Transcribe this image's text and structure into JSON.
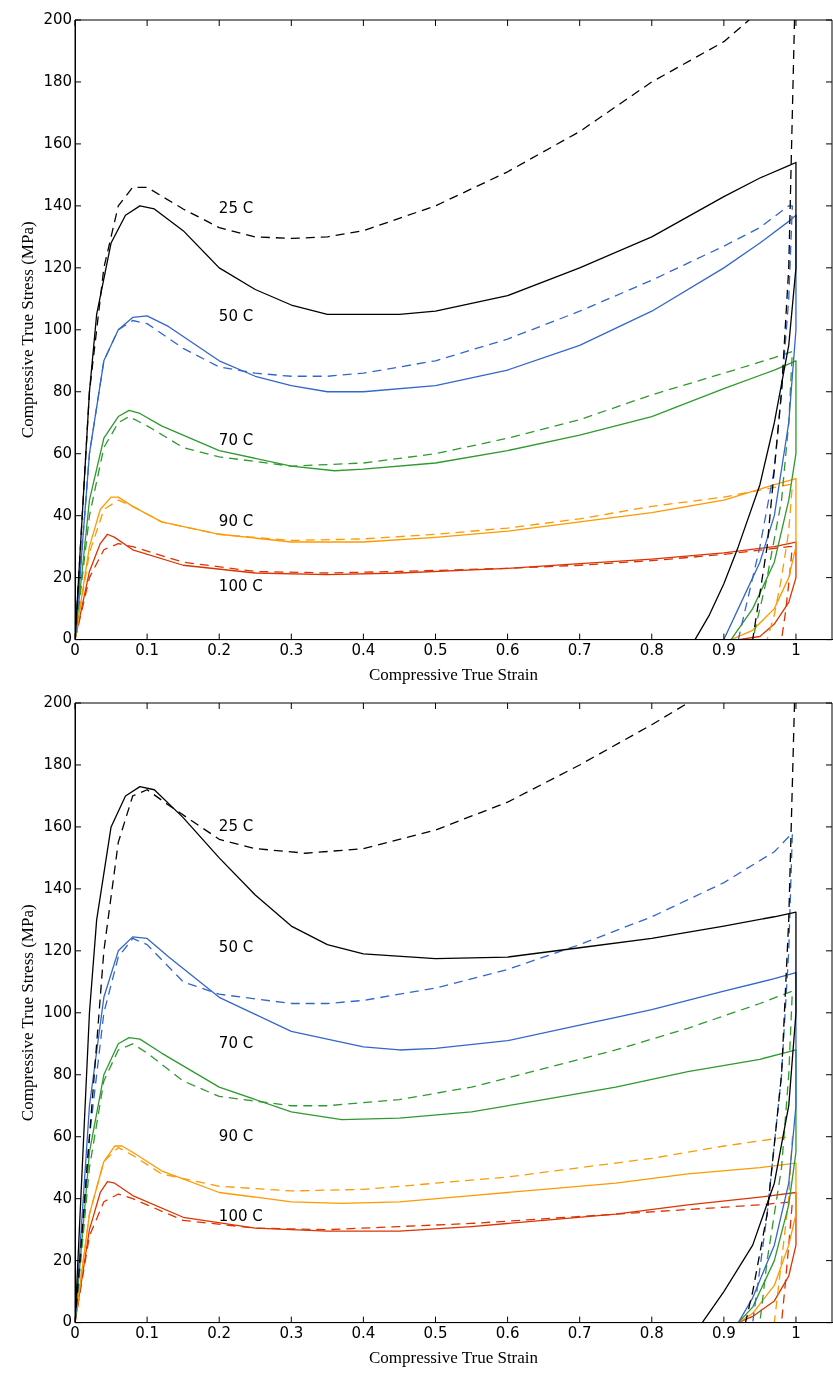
{
  "chart_data": [
    {
      "type": "line",
      "xlabel": "Compressive True Strain",
      "ylabel": "Compressive True Stress (MPa)",
      "xlim": [
        0,
        1.05
      ],
      "ylim": [
        0,
        200
      ],
      "xticks": [
        0,
        0.1,
        0.2,
        0.3,
        0.4,
        0.5,
        0.6,
        0.7,
        0.8,
        0.9,
        1
      ],
      "yticks": [
        0,
        20,
        40,
        60,
        80,
        100,
        120,
        140,
        160,
        180,
        200
      ],
      "grid": false,
      "legend": false,
      "annotations": [
        "25 C",
        "50 C",
        "70 C",
        "90 C",
        "100 C"
      ],
      "series": [
        {
          "color": "#000000",
          "line_style": "solid",
          "x": [
            0,
            0.01,
            0.02,
            0.03,
            0.05,
            0.07,
            0.09,
            0.11,
            0.15,
            0.2,
            0.25,
            0.3,
            0.35,
            0.4,
            0.45,
            0.5,
            0.6,
            0.7,
            0.8,
            0.9,
            0.95,
            0.99,
            1.0,
            1.0,
            0.99,
            0.97,
            0.95,
            0.92,
            0.9,
            0.88,
            0.86
          ],
          "values": [
            0,
            40,
            80,
            105,
            128,
            137,
            140,
            139,
            132,
            120,
            113,
            108,
            105,
            105,
            105,
            106,
            111,
            120,
            130,
            143,
            149,
            153,
            154,
            120,
            95,
            70,
            50,
            30,
            18,
            8,
            0
          ]
        },
        {
          "color": "#000000",
          "line_style": "dashed",
          "x": [
            0,
            0.01,
            0.02,
            0.04,
            0.06,
            0.08,
            0.1,
            0.15,
            0.2,
            0.25,
            0.3,
            0.35,
            0.4,
            0.5,
            0.6,
            0.7,
            0.8,
            0.9,
            0.935,
            0.97,
            0.998,
            0.99,
            0.98,
            0.96,
            0.94
          ],
          "values": [
            0,
            40,
            80,
            120,
            140,
            146,
            146,
            139,
            133,
            130,
            129.5,
            130,
            132,
            140,
            151,
            164,
            180,
            193,
            200,
            null,
            200,
            120,
            80,
            30,
            0
          ]
        },
        {
          "color": "#3366cc",
          "line_style": "solid",
          "x": [
            0,
            0.01,
            0.02,
            0.04,
            0.06,
            0.08,
            0.1,
            0.13,
            0.2,
            0.25,
            0.3,
            0.35,
            0.4,
            0.5,
            0.6,
            0.7,
            0.8,
            0.9,
            0.95,
            0.99,
            1.0,
            1.0,
            0.99,
            0.97,
            0.95,
            0.92,
            0.9
          ],
          "values": [
            0,
            30,
            60,
            90,
            100,
            104,
            104.5,
            101,
            90,
            85,
            82,
            80,
            80,
            82,
            87,
            95,
            106,
            120,
            128,
            135,
            137,
            100,
            70,
            40,
            25,
            10,
            0
          ]
        },
        {
          "color": "#3366cc",
          "line_style": "dashed",
          "x": [
            0,
            0.02,
            0.04,
            0.06,
            0.08,
            0.1,
            0.15,
            0.2,
            0.25,
            0.3,
            0.35,
            0.4,
            0.5,
            0.6,
            0.7,
            0.8,
            0.9,
            0.95,
            0.99,
            0.995,
            0.99,
            0.98,
            0.97,
            0.95,
            0.93,
            0.92
          ],
          "values": [
            0,
            60,
            90,
            100,
            103,
            102,
            94,
            88,
            86,
            85,
            85,
            86,
            90,
            97,
            106,
            116,
            127,
            133,
            140,
            140,
            110,
            80,
            55,
            30,
            10,
            0
          ]
        },
        {
          "color": "#2e9a2e",
          "line_style": "solid",
          "x": [
            0,
            0.02,
            0.04,
            0.06,
            0.075,
            0.09,
            0.12,
            0.2,
            0.3,
            0.36,
            0.4,
            0.5,
            0.6,
            0.7,
            0.8,
            0.9,
            0.97,
            1.0,
            1.0,
            0.99,
            0.97,
            0.94,
            0.91
          ],
          "values": [
            0,
            45,
            65,
            72,
            74,
            73,
            69,
            61,
            56,
            54.5,
            55,
            57,
            61,
            66,
            72,
            81,
            87,
            90,
            60,
            45,
            25,
            10,
            0
          ]
        },
        {
          "color": "#2e9a2e",
          "line_style": "dashed",
          "x": [
            0,
            0.02,
            0.04,
            0.06,
            0.075,
            0.1,
            0.15,
            0.2,
            0.3,
            0.4,
            0.5,
            0.6,
            0.7,
            0.8,
            0.9,
            0.97,
            0.995,
            0.99,
            0.98,
            0.96,
            0.94
          ],
          "values": [
            0,
            40,
            62,
            70,
            72,
            69,
            62,
            59,
            56,
            57,
            60,
            65,
            71,
            79,
            86,
            91,
            93,
            70,
            45,
            20,
            0
          ]
        },
        {
          "color": "#ff9900",
          "line_style": "solid",
          "x": [
            0,
            0.02,
            0.035,
            0.05,
            0.06,
            0.08,
            0.12,
            0.2,
            0.3,
            0.4,
            0.5,
            0.6,
            0.7,
            0.8,
            0.9,
            0.97,
            1.0,
            1.0,
            0.99,
            0.97,
            0.94,
            0.91
          ],
          "values": [
            0,
            30,
            42,
            46,
            46,
            43,
            38,
            34,
            31.5,
            31.5,
            33,
            35,
            38,
            41,
            45,
            50,
            52,
            30,
            20,
            10,
            3,
            0
          ]
        },
        {
          "color": "#ff9900",
          "line_style": "dashed",
          "x": [
            0,
            0.02,
            0.04,
            0.06,
            0.08,
            0.12,
            0.2,
            0.3,
            0.4,
            0.5,
            0.6,
            0.7,
            0.8,
            0.9,
            0.99,
            0.995,
            0.99,
            0.98,
            0.97,
            0.96
          ],
          "values": [
            0,
            28,
            42,
            45,
            43,
            38,
            34,
            32,
            32.5,
            34,
            36,
            39,
            43,
            46,
            50,
            50,
            35,
            20,
            8,
            0
          ]
        },
        {
          "color": "#dd3300",
          "line_style": "solid",
          "x": [
            0,
            0.02,
            0.035,
            0.045,
            0.055,
            0.08,
            0.15,
            0.25,
            0.35,
            0.45,
            0.6,
            0.7,
            0.8,
            0.9,
            0.97,
            1.0,
            1.0,
            0.99,
            0.97,
            0.95,
            0.92
          ],
          "values": [
            0,
            22,
            31,
            34,
            33,
            29,
            24,
            21.5,
            21,
            21.5,
            23,
            24.5,
            26,
            28,
            30,
            31.5,
            20,
            12,
            5,
            1,
            0
          ]
        },
        {
          "color": "#dd3300",
          "line_style": "dashed",
          "x": [
            0,
            0.02,
            0.04,
            0.06,
            0.08,
            0.15,
            0.25,
            0.35,
            0.45,
            0.6,
            0.7,
            0.8,
            0.9,
            0.99,
            0.995,
            0.99,
            0.985,
            0.98
          ],
          "values": [
            0,
            20,
            29,
            31,
            30,
            25,
            22,
            21.5,
            22,
            23,
            24,
            25.5,
            27.5,
            30,
            30,
            18,
            8,
            0
          ]
        }
      ]
    },
    {
      "type": "line",
      "xlabel": "Compressive True Strain",
      "ylabel": "Compressive True Stress (MPa)",
      "xlim": [
        0,
        1.05
      ],
      "ylim": [
        0,
        200
      ],
      "xticks": [
        0,
        0.1,
        0.2,
        0.3,
        0.4,
        0.5,
        0.6,
        0.7,
        0.8,
        0.9,
        1
      ],
      "yticks": [
        0,
        20,
        40,
        60,
        80,
        100,
        120,
        140,
        160,
        180,
        200
      ],
      "grid": false,
      "legend": false,
      "annotations": [
        "25 C",
        "50 C",
        "70 C",
        "90 C",
        "100 C"
      ],
      "series": [
        {
          "color": "#000000",
          "line_style": "solid",
          "x": [
            0,
            0.01,
            0.02,
            0.03,
            0.05,
            0.07,
            0.09,
            0.11,
            0.15,
            0.2,
            0.25,
            0.3,
            0.35,
            0.4,
            0.5,
            0.6,
            0.7,
            0.8,
            0.9,
            0.97,
            1.0,
            1.0,
            0.99,
            0.97,
            0.94,
            0.9,
            0.87
          ],
          "values": [
            0,
            50,
            100,
            130,
            160,
            170,
            173,
            172,
            163,
            150,
            138,
            128,
            122,
            119,
            117.5,
            118,
            121,
            124,
            128,
            131,
            132.5,
            100,
            70,
            45,
            25,
            10,
            0
          ]
        },
        {
          "color": "#000000",
          "line_style": "dashed",
          "x": [
            0,
            0.02,
            0.04,
            0.06,
            0.08,
            0.1,
            0.13,
            0.2,
            0.25,
            0.32,
            0.4,
            0.5,
            0.6,
            0.7,
            0.8,
            0.85,
            0.9,
            0.998,
            0.99,
            0.98,
            0.96,
            0.94,
            0.93
          ],
          "values": [
            0,
            60,
            120,
            155,
            170,
            172,
            167,
            156,
            153,
            151.5,
            153,
            159,
            168,
            180,
            193,
            200,
            null,
            200,
            130,
            80,
            35,
            10,
            0
          ]
        },
        {
          "color": "#3366cc",
          "line_style": "solid",
          "x": [
            0,
            0.02,
            0.04,
            0.06,
            0.08,
            0.1,
            0.13,
            0.2,
            0.3,
            0.4,
            0.45,
            0.5,
            0.6,
            0.7,
            0.8,
            0.9,
            0.97,
            1.0,
            1.0,
            0.99,
            0.97,
            0.94,
            0.92
          ],
          "values": [
            0,
            70,
            105,
            120,
            124.5,
            124,
            118,
            105,
            94,
            89,
            88,
            88.5,
            91,
            96,
            101,
            107,
            111,
            113,
            70,
            45,
            25,
            8,
            0
          ]
        },
        {
          "color": "#3366cc",
          "line_style": "dashed",
          "x": [
            0,
            0.02,
            0.04,
            0.06,
            0.08,
            0.1,
            0.15,
            0.2,
            0.3,
            0.35,
            0.4,
            0.5,
            0.6,
            0.7,
            0.8,
            0.9,
            0.97,
            0.995,
            0.99,
            0.98,
            0.96,
            0.94
          ],
          "values": [
            0,
            60,
            100,
            118,
            124,
            122,
            110,
            106,
            103,
            103,
            104,
            108,
            114,
            122,
            131,
            142,
            152,
            158,
            120,
            80,
            35,
            0
          ]
        },
        {
          "color": "#2e9a2e",
          "line_style": "solid",
          "x": [
            0,
            0.02,
            0.04,
            0.06,
            0.075,
            0.09,
            0.12,
            0.2,
            0.3,
            0.37,
            0.45,
            0.55,
            0.65,
            0.75,
            0.85,
            0.95,
            1.0,
            1.0,
            0.99,
            0.97,
            0.94,
            0.92
          ],
          "values": [
            0,
            55,
            80,
            90,
            92,
            91.5,
            87,
            76,
            68,
            65.5,
            66,
            68,
            72,
            76,
            81,
            85,
            88,
            55,
            38,
            20,
            5,
            0
          ]
        },
        {
          "color": "#2e9a2e",
          "line_style": "dashed",
          "x": [
            0,
            0.02,
            0.04,
            0.06,
            0.08,
            0.1,
            0.15,
            0.2,
            0.3,
            0.35,
            0.45,
            0.55,
            0.65,
            0.75,
            0.85,
            0.95,
            0.995,
            0.99,
            0.98,
            0.96,
            0.95
          ],
          "values": [
            0,
            50,
            78,
            88,
            90,
            87,
            78,
            73,
            70,
            70,
            72,
            76,
            82,
            88,
            95,
            103,
            107,
            80,
            50,
            20,
            0
          ]
        },
        {
          "color": "#ff9900",
          "line_style": "solid",
          "x": [
            0,
            0.02,
            0.04,
            0.055,
            0.065,
            0.08,
            0.12,
            0.2,
            0.3,
            0.37,
            0.45,
            0.55,
            0.65,
            0.75,
            0.85,
            0.95,
            1.0,
            1.0,
            0.99,
            0.97,
            0.94,
            0.92
          ],
          "values": [
            0,
            35,
            52,
            57,
            57,
            55,
            49,
            42,
            39,
            38.5,
            39,
            41,
            43,
            45,
            48,
            50,
            51.5,
            35,
            25,
            12,
            3,
            0
          ]
        },
        {
          "color": "#ff9900",
          "line_style": "dashed",
          "x": [
            0,
            0.02,
            0.04,
            0.06,
            0.08,
            0.12,
            0.2,
            0.3,
            0.4,
            0.5,
            0.6,
            0.7,
            0.8,
            0.9,
            0.99,
            0.995,
            0.99,
            0.98,
            0.97
          ],
          "values": [
            0,
            35,
            52,
            56.5,
            54,
            48,
            44,
            42.5,
            43,
            45,
            47,
            50,
            53,
            57,
            60,
            60,
            40,
            20,
            0
          ]
        },
        {
          "color": "#dd3300",
          "line_style": "solid",
          "x": [
            0,
            0.02,
            0.035,
            0.045,
            0.055,
            0.08,
            0.15,
            0.25,
            0.35,
            0.45,
            0.55,
            0.65,
            0.75,
            0.85,
            0.95,
            1.0,
            1.0,
            0.99,
            0.97,
            0.94,
            0.92
          ],
          "values": [
            0,
            30,
            42,
            45.5,
            45,
            41,
            34,
            30.5,
            29.5,
            29.5,
            31,
            33,
            35,
            38,
            40.5,
            42,
            25,
            15,
            7,
            2,
            0
          ]
        },
        {
          "color": "#dd3300",
          "line_style": "dashed",
          "x": [
            0,
            0.02,
            0.04,
            0.06,
            0.08,
            0.15,
            0.25,
            0.35,
            0.45,
            0.55,
            0.65,
            0.75,
            0.85,
            0.95,
            0.995,
            0.99,
            0.985,
            0.98
          ],
          "values": [
            0,
            28,
            39,
            41.5,
            40,
            33,
            30.5,
            30,
            31,
            32,
            33.5,
            35,
            36.5,
            38,
            39,
            25,
            12,
            0
          ]
        }
      ]
    }
  ]
}
